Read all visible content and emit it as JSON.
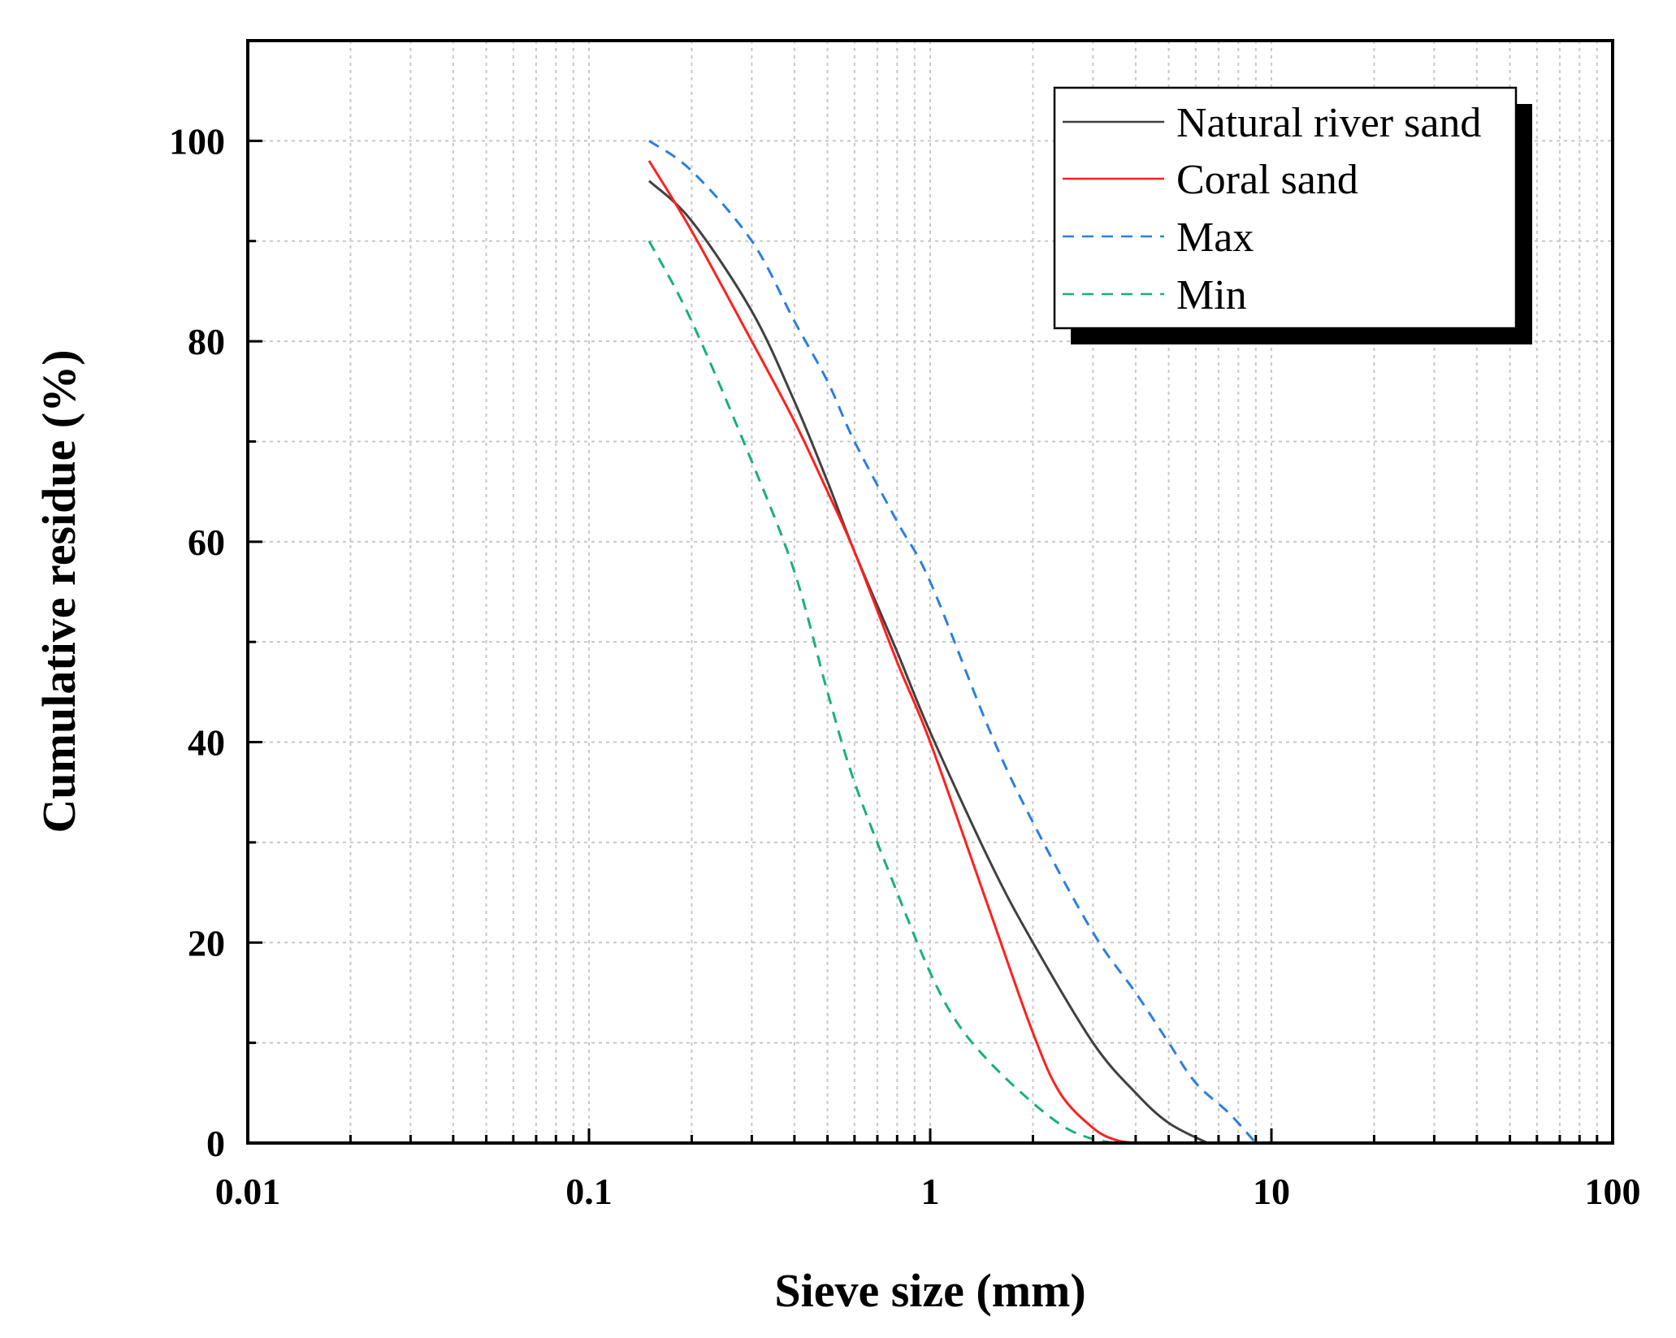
{
  "chart_data": {
    "type": "line",
    "title": "",
    "xlabel": "Sieve size (mm)",
    "ylabel": "Cumulative residue (%)",
    "xscale": "log",
    "xlim": [
      0.01,
      100
    ],
    "ylim": [
      0,
      110
    ],
    "xticks": [
      0.01,
      0.1,
      1,
      10,
      100
    ],
    "xtick_labels": [
      "0.01",
      "0.1",
      "1",
      "10",
      "100"
    ],
    "yticks": [
      0,
      20,
      40,
      60,
      80,
      100
    ],
    "ytick_labels": [
      "0",
      "20",
      "40",
      "60",
      "80",
      "100"
    ],
    "grid": true,
    "legend_position": "top-right",
    "series": [
      {
        "name": "Natural river sand",
        "color": "#404040",
        "dash": "solid",
        "x": [
          0.15,
          0.2,
          0.3,
          0.4,
          0.5,
          0.6,
          0.8,
          1.0,
          1.5,
          2.0,
          3.0,
          4.0,
          5.0,
          6.5
        ],
        "y": [
          96,
          92,
          83,
          74,
          66,
          59,
          49,
          41,
          28,
          20,
          10,
          5,
          2,
          0
        ]
      },
      {
        "name": "Coral sand",
        "color": "#ff2020",
        "dash": "solid",
        "x": [
          0.15,
          0.2,
          0.3,
          0.4,
          0.5,
          0.6,
          0.8,
          1.0,
          1.5,
          2.0,
          2.4,
          3.0,
          3.5,
          4.0
        ],
        "y": [
          98,
          91,
          80,
          72,
          65,
          59,
          48,
          40,
          23,
          11,
          5,
          1.5,
          0.3,
          0
        ]
      },
      {
        "name": "Max",
        "color": "#2a7fe0",
        "dash": "dashed",
        "x": [
          0.15,
          0.2,
          0.3,
          0.4,
          0.5,
          0.6,
          0.8,
          1.0,
          1.5,
          2.0,
          3.0,
          4.0,
          5.0,
          6.0,
          7.5,
          9.0
        ],
        "y": [
          100,
          97,
          90,
          82,
          76,
          70,
          62,
          56,
          41,
          32,
          21,
          15,
          10,
          6,
          3,
          0
        ]
      },
      {
        "name": "Min",
        "color": "#18b07a",
        "dash": "dashed",
        "x": [
          0.15,
          0.2,
          0.3,
          0.4,
          0.5,
          0.6,
          0.8,
          1.0,
          1.2,
          1.5,
          2.0,
          2.5,
          3.0,
          3.5
        ],
        "y": [
          90,
          82,
          68,
          57,
          45,
          36,
          25,
          17,
          12,
          8,
          4,
          1.5,
          0.4,
          0
        ]
      }
    ]
  }
}
